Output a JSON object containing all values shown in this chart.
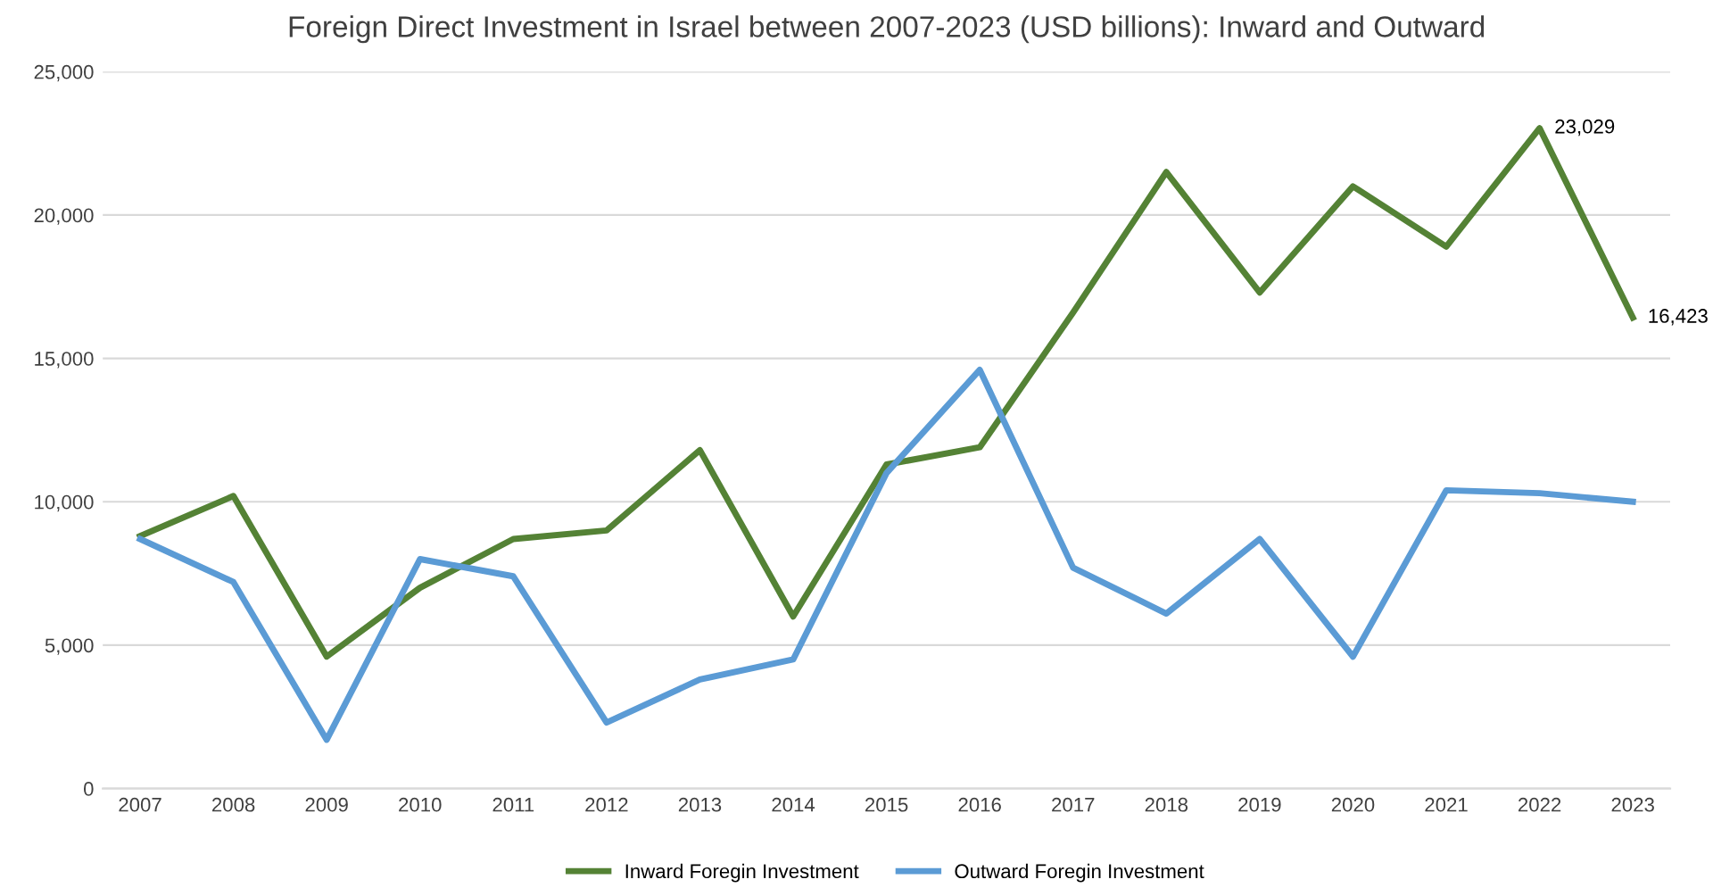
{
  "chart_data": {
    "type": "line",
    "title": "Foreign Direct Investment in Israel between 2007-2023 (USD billions): Inward and Outward",
    "categories": [
      "2007",
      "2008",
      "2009",
      "2010",
      "2011",
      "2012",
      "2013",
      "2014",
      "2015",
      "2016",
      "2017",
      "2018",
      "2019",
      "2020",
      "2021",
      "2022",
      "2023"
    ],
    "series": [
      {
        "name": "Inward Foregin Investment",
        "color": "#548235",
        "values": [
          8800,
          10200,
          4600,
          7000,
          8700,
          9000,
          11800,
          6000,
          11300,
          11900,
          16600,
          21500,
          17300,
          21000,
          18900,
          23029,
          16423
        ]
      },
      {
        "name": "Outward Foregin Investment",
        "color": "#5b9bd5",
        "values": [
          8700,
          7200,
          1700,
          8000,
          7400,
          2300,
          3800,
          4500,
          11000,
          14600,
          7700,
          6100,
          8700,
          4600,
          10400,
          10300,
          10000
        ]
      }
    ],
    "ylim": [
      0,
      25000
    ],
    "yticks": [
      {
        "value": 0,
        "label": "0"
      },
      {
        "value": 5000,
        "label": "5,000"
      },
      {
        "value": 10000,
        "label": "10,000"
      },
      {
        "value": 15000,
        "label": "15,000"
      },
      {
        "value": 20000,
        "label": "20,000"
      },
      {
        "value": 25000,
        "label": "25,000"
      }
    ],
    "annotations": [
      {
        "text": "23,029",
        "x": "2022",
        "y": 23029
      },
      {
        "text": "16,423",
        "x": "2023",
        "y": 16423
      }
    ],
    "grid": "y",
    "legend": "bottom",
    "marker": "none",
    "line_style": "solid"
  }
}
